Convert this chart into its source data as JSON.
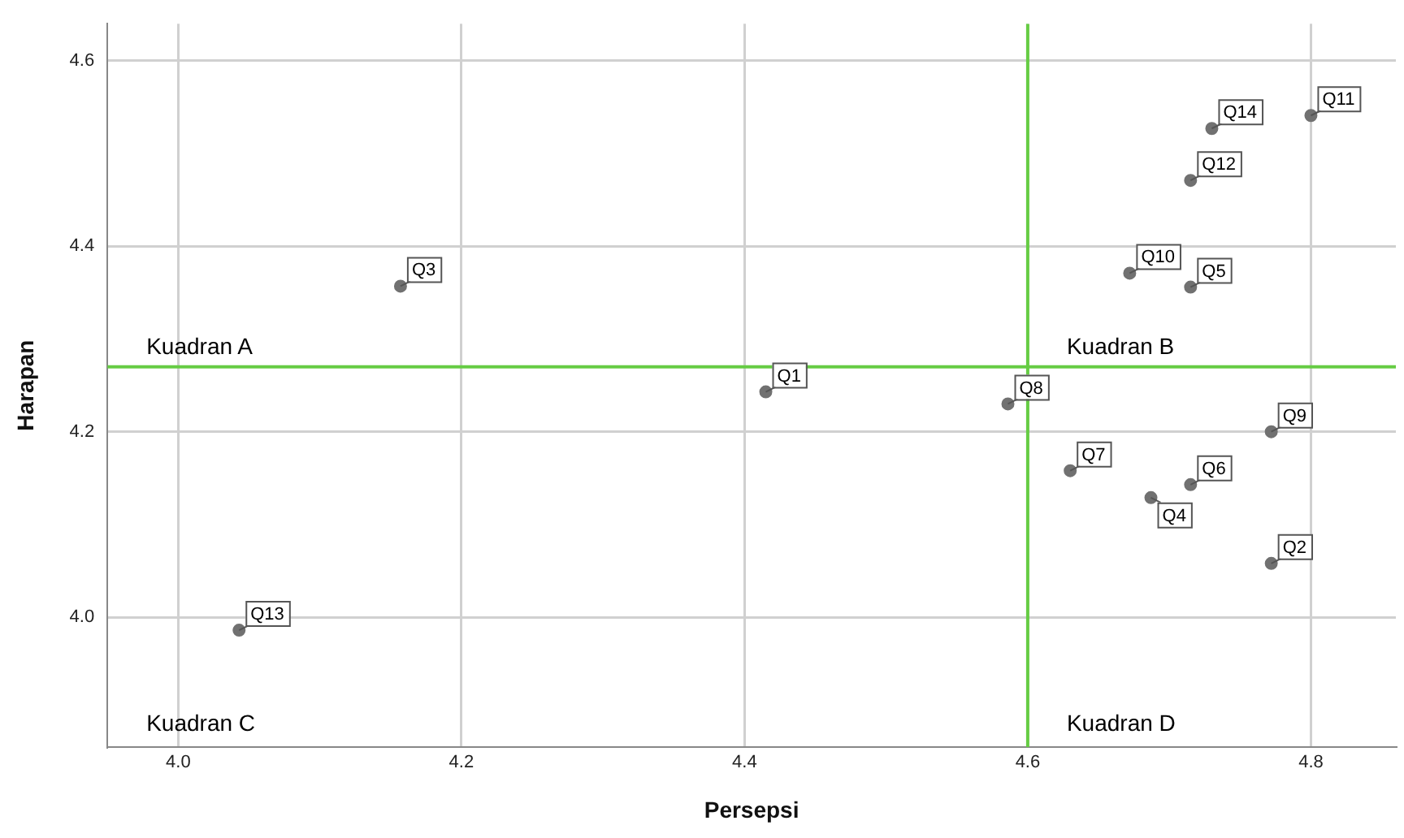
{
  "chart_data": {
    "type": "scatter",
    "xlabel": "Persepsi",
    "ylabel": "Harapan",
    "series": [
      {
        "color": "#717171",
        "x": [
          4.415,
          4.772,
          4.157,
          4.687,
          4.715,
          4.715,
          4.63,
          4.586,
          4.772,
          4.672,
          4.8,
          4.715,
          4.043,
          4.73
        ],
        "values": [
          4.243,
          4.058,
          4.357,
          4.129,
          4.356,
          4.143,
          4.158,
          4.23,
          4.2,
          4.371,
          4.541,
          4.471,
          3.986,
          4.527
        ]
      }
    ],
    "annotations": [
      {
        "text": "Q1",
        "x": 4.415,
        "y": 4.243
      },
      {
        "text": "Q2",
        "x": 4.772,
        "y": 4.058
      },
      {
        "text": "Q3",
        "x": 4.157,
        "y": 4.357
      },
      {
        "text": "Q4",
        "x": 4.687,
        "y": 4.129
      },
      {
        "text": "Q5",
        "x": 4.715,
        "y": 4.356
      },
      {
        "text": "Q6",
        "x": 4.715,
        "y": 4.143
      },
      {
        "text": "Q7",
        "x": 4.63,
        "y": 4.158
      },
      {
        "text": "Q8",
        "x": 4.586,
        "y": 4.23
      },
      {
        "text": "Q9",
        "x": 4.772,
        "y": 4.2
      },
      {
        "text": "Q10",
        "x": 4.672,
        "y": 4.371
      },
      {
        "text": "Q11",
        "x": 4.8,
        "y": 4.541
      },
      {
        "text": "Q12",
        "x": 4.715,
        "y": 4.471
      },
      {
        "text": "Q13",
        "x": 4.043,
        "y": 3.986
      },
      {
        "text": "Q14",
        "x": 4.73,
        "y": 4.527
      },
      "Kuadran A",
      "Kuadran B",
      "Kuadran C",
      "Kuadran D"
    ],
    "ref_lines": [
      {
        "axis": "x",
        "value": 4.6,
        "color": "#66cc44"
      },
      {
        "axis": "y",
        "value": 4.27,
        "color": "#66cc44"
      }
    ],
    "xlim": [
      3.95,
      4.86
    ],
    "ylim": [
      3.86,
      4.64
    ],
    "xticks": [
      {
        "value": 4,
        "label": "4.0"
      },
      4.2,
      4.4,
      4.6,
      4.8
    ],
    "yticks": [
      {
        "value": 4,
        "label": "4.0"
      },
      4.2,
      4.4,
      4.6
    ],
    "grid": true,
    "legend": false,
    "marker": "circle"
  }
}
